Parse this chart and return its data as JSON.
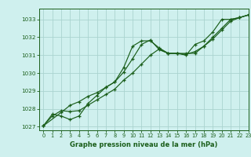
{
  "bg_color": "#cff0ee",
  "grid_color": "#aad4d0",
  "line_color": "#1a5e1a",
  "title": "Graphe pression niveau de la mer (hPa)",
  "title_color": "#1a5e1a",
  "xlim": [
    -0.5,
    23
  ],
  "ylim": [
    1026.8,
    1033.6
  ],
  "yticks": [
    1027,
    1028,
    1029,
    1030,
    1031,
    1032,
    1033
  ],
  "xticks": [
    0,
    1,
    2,
    3,
    4,
    5,
    6,
    7,
    8,
    9,
    10,
    11,
    12,
    13,
    14,
    15,
    16,
    17,
    18,
    19,
    20,
    21,
    22,
    23
  ],
  "line1_x": [
    0,
    1,
    2,
    3,
    4,
    5,
    6,
    7,
    8,
    9,
    10,
    11,
    12,
    13,
    14,
    15,
    16,
    17,
    18,
    19,
    20,
    21,
    22,
    23
  ],
  "line1_y": [
    1027.05,
    1027.7,
    1027.6,
    1027.4,
    1027.6,
    1028.3,
    1028.75,
    1029.2,
    1029.5,
    1030.3,
    1031.5,
    1031.8,
    1031.8,
    1031.4,
    1031.1,
    1031.1,
    1031.0,
    1031.6,
    1031.8,
    1032.3,
    1033.0,
    1033.0,
    1033.1,
    1033.25
  ],
  "line2_x": [
    0,
    1,
    2,
    3,
    4,
    5,
    6,
    7,
    8,
    9,
    10,
    11,
    12,
    13,
    14,
    15,
    16,
    17,
    18,
    19,
    20,
    21,
    22,
    23
  ],
  "line2_y": [
    1027.05,
    1027.6,
    1027.9,
    1027.85,
    1027.9,
    1028.2,
    1028.5,
    1028.8,
    1029.1,
    1029.6,
    1030.0,
    1030.5,
    1031.0,
    1031.35,
    1031.1,
    1031.1,
    1031.05,
    1031.2,
    1031.5,
    1032.0,
    1032.5,
    1033.0,
    1033.1,
    1033.25
  ],
  "line3_x": [
    0,
    2,
    3,
    4,
    5,
    6,
    7,
    8,
    9,
    10,
    11,
    12,
    13,
    14,
    15,
    16,
    17,
    18,
    19,
    20,
    21,
    22,
    23
  ],
  "line3_y": [
    1027.05,
    1027.8,
    1028.2,
    1028.4,
    1028.7,
    1028.9,
    1029.2,
    1029.5,
    1030.05,
    1030.8,
    1031.6,
    1031.85,
    1031.3,
    1031.1,
    1031.1,
    1031.1,
    1031.1,
    1031.5,
    1031.9,
    1032.4,
    1032.9,
    1033.1,
    1033.25
  ]
}
